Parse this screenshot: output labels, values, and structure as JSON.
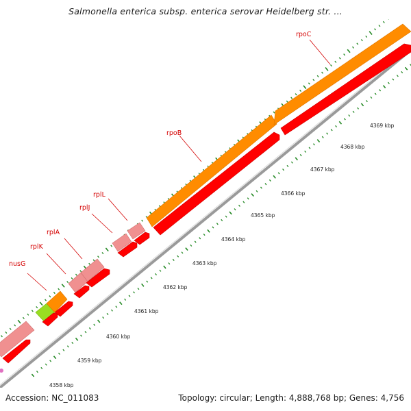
{
  "title": "Salmonella enterica subsp. enterica serovar Heidelberg str. ...",
  "footer": {
    "accession_label": "Accession:",
    "accession_value": "NC_011083",
    "topology": "Topology: circular; Length: 4,888,768 bp; Genes: 4,756"
  },
  "kbp_labels": [
    "4358 kbp",
    "4359 kbp",
    "4360 kbp",
    "4361 kbp",
    "4362 kbp",
    "4363 kbp",
    "4364 kbp",
    "4365 kbp",
    "4366 kbp",
    "4367 kbp",
    "4368 kbp",
    "4369 kbp"
  ],
  "gene_labels": [
    "nusG",
    "rplK",
    "rplA",
    "rplJ",
    "rplL",
    "rpoB",
    "rpoC"
  ],
  "colors": {
    "rpo_genes": "#ff8c00",
    "rpl_genes": "#f09090",
    "cds": "#ff0000",
    "nusG_gene": "#99dd22",
    "ticks": "#228822",
    "backbone": "#999999",
    "label": "#d40000"
  }
}
